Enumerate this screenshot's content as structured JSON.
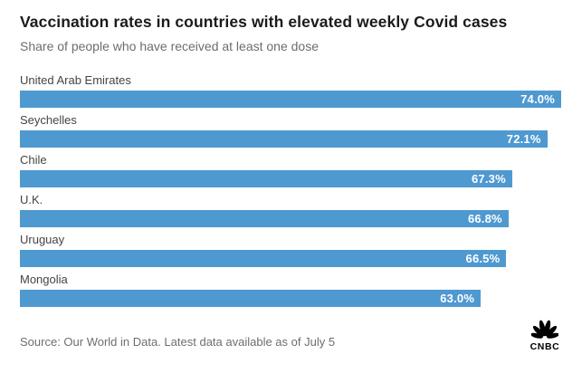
{
  "header": {
    "title": "Vaccination rates in countries with elevated weekly Covid cases",
    "subtitle": "Share of people who have received at least one dose"
  },
  "chart_data": {
    "type": "bar",
    "orientation": "horizontal",
    "title": "Vaccination rates in countries with elevated weekly Covid cases",
    "subtitle": "Share of people who have received at least one dose",
    "categories": [
      "United Arab Emirates",
      "Seychelles",
      "Chile",
      "U.K.",
      "Uruguay",
      "Mongolia"
    ],
    "values": [
      74.0,
      72.1,
      67.3,
      66.8,
      66.5,
      63.0
    ],
    "value_labels": [
      "74.0%",
      "72.1%",
      "67.3%",
      "66.8%",
      "66.5%",
      "63.0%"
    ],
    "xlim": [
      0,
      74
    ],
    "grid": false,
    "legend": false,
    "bar_color": "#4f99d1",
    "value_label_color": "#ffffff"
  },
  "footer": {
    "source": "Source: Our World in Data. Latest data available as of July 5",
    "logo_text": "CNBC",
    "logo_icon": "cnbc-peacock-icon",
    "logo_color": "#000000"
  }
}
